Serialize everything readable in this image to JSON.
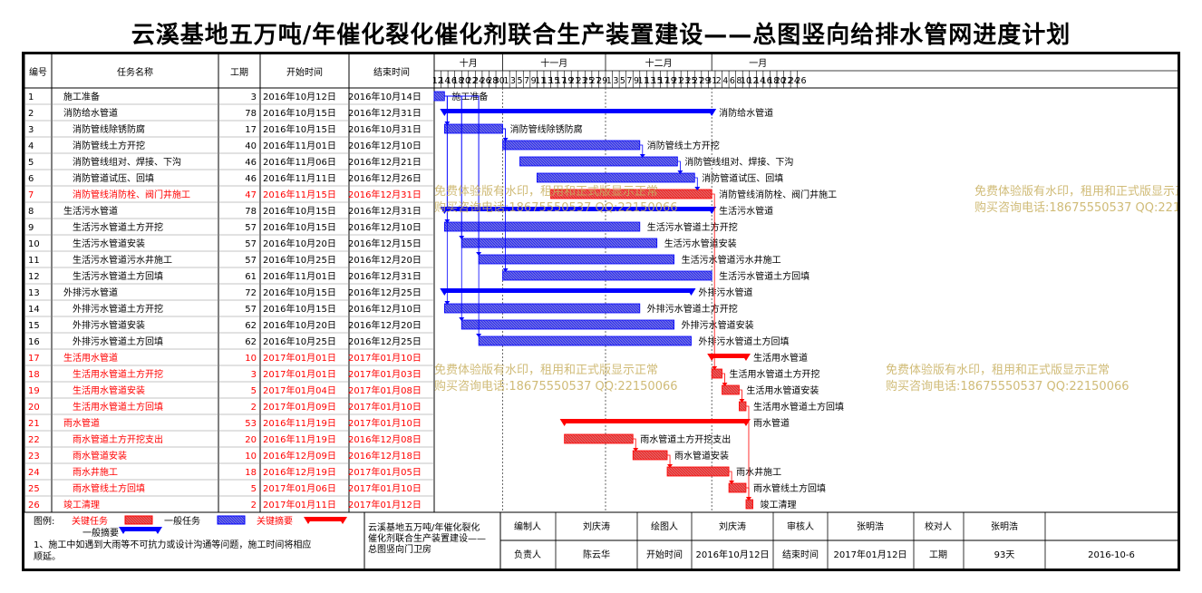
{
  "title": "云溪基地五万吨/年催化裂化催化剂联合生产装置建设——总图竖向给排水管网进度计划",
  "columns": {
    "no": "编号",
    "name": "任务名称",
    "duration": "工期",
    "start": "开始时间",
    "end": "结束时间"
  },
  "months": [
    "十月",
    "十一月",
    "十二月",
    "一月"
  ],
  "day_labels": [
    "12",
    "14",
    "16",
    "18",
    "20",
    "22",
    "24",
    "26",
    "28",
    "30",
    "1",
    "3",
    "5",
    "7",
    "9",
    "11",
    "13",
    "15",
    "17",
    "19",
    "21",
    "23",
    "25",
    "27",
    "29",
    "1",
    "3",
    "5",
    "7",
    "9",
    "11",
    "13",
    "15",
    "17",
    "19",
    "21",
    "23",
    "25",
    "27",
    "29",
    "31",
    "2",
    "4",
    "6",
    "8",
    "10",
    "12",
    "14",
    "16",
    "18",
    "20",
    "22",
    "24",
    "26"
  ],
  "colors": {
    "critical": "#ff0000",
    "normal": "#0000ff",
    "critical_fill": "#e06060",
    "normal_fill": "#6f6fe0",
    "watermark": "#c8b060",
    "link": "#0000ff",
    "link_critical": "#ff0000"
  },
  "chart_data": {
    "type": "gantt",
    "x_range": [
      "2016-10-12",
      "2017-01-26"
    ],
    "tasks": [
      {
        "no": "1",
        "name": "施工准备",
        "duration": "3",
        "start": "2016年10月12日",
        "end": "2016年10月14日",
        "s": "2016-10-12",
        "e": "2016-10-14",
        "level": 0,
        "critical": false,
        "summary": false
      },
      {
        "no": "2",
        "name": "消防给水管道",
        "duration": "78",
        "start": "2016年10月15日",
        "end": "2016年12月31日",
        "s": "2016-10-15",
        "e": "2016-12-31",
        "level": 0,
        "critical": false,
        "summary": true
      },
      {
        "no": "3",
        "name": "消防管线除锈防腐",
        "duration": "17",
        "start": "2016年10月15日",
        "end": "2016年10月31日",
        "s": "2016-10-15",
        "e": "2016-10-31",
        "level": 1,
        "critical": false,
        "summary": false
      },
      {
        "no": "4",
        "name": "消防管线土方开挖",
        "duration": "40",
        "start": "2016年11月01日",
        "end": "2016年12月10日",
        "s": "2016-11-01",
        "e": "2016-12-10",
        "level": 1,
        "critical": false,
        "summary": false
      },
      {
        "no": "5",
        "name": "消防管线组对、焊接、下沟",
        "duration": "46",
        "start": "2016年11月06日",
        "end": "2016年12月21日",
        "s": "2016-11-06",
        "e": "2016-12-21",
        "level": 1,
        "critical": false,
        "summary": false
      },
      {
        "no": "6",
        "name": "消防管道试压、回填",
        "duration": "46",
        "start": "2016年11月11日",
        "end": "2016年12月26日",
        "s": "2016-11-11",
        "e": "2016-12-26",
        "level": 1,
        "critical": false,
        "summary": false
      },
      {
        "no": "7",
        "name": "消防管线消防栓、阀门井施工",
        "duration": "47",
        "start": "2016年11月15日",
        "end": "2016年12月31日",
        "s": "2016-11-15",
        "e": "2016-12-31",
        "level": 1,
        "critical": true,
        "summary": false
      },
      {
        "no": "8",
        "name": "生活污水管道",
        "duration": "78",
        "start": "2016年10月15日",
        "end": "2016年12月31日",
        "s": "2016-10-15",
        "e": "2016-12-31",
        "level": 0,
        "critical": false,
        "summary": true
      },
      {
        "no": "9",
        "name": "生活污水管道土方开挖",
        "duration": "57",
        "start": "2016年10月15日",
        "end": "2016年12月10日",
        "s": "2016-10-15",
        "e": "2016-12-10",
        "level": 1,
        "critical": false,
        "summary": false
      },
      {
        "no": "10",
        "name": "生活污水管道安装",
        "duration": "57",
        "start": "2016年10月20日",
        "end": "2016年12月15日",
        "s": "2016-10-20",
        "e": "2016-12-15",
        "level": 1,
        "critical": false,
        "summary": false
      },
      {
        "no": "11",
        "name": "生活污水管道污水井施工",
        "duration": "57",
        "start": "2016年10月25日",
        "end": "2016年12月20日",
        "s": "2016-10-25",
        "e": "2016-12-20",
        "level": 1,
        "critical": false,
        "summary": false
      },
      {
        "no": "12",
        "name": "生活污水管道土方回填",
        "duration": "61",
        "start": "2016年11月01日",
        "end": "2016年12月31日",
        "s": "2016-11-01",
        "e": "2016-12-31",
        "level": 1,
        "critical": false,
        "summary": false
      },
      {
        "no": "13",
        "name": "外排污水管道",
        "duration": "72",
        "start": "2016年10月15日",
        "end": "2016年12月25日",
        "s": "2016-10-15",
        "e": "2016-12-25",
        "level": 0,
        "critical": false,
        "summary": true
      },
      {
        "no": "14",
        "name": "外排污水管道土方开挖",
        "duration": "57",
        "start": "2016年10月15日",
        "end": "2016年12月10日",
        "s": "2016-10-15",
        "e": "2016-12-10",
        "level": 1,
        "critical": false,
        "summary": false
      },
      {
        "no": "15",
        "name": "外排污水管道安装",
        "duration": "62",
        "start": "2016年10月20日",
        "end": "2016年12月20日",
        "s": "2016-10-20",
        "e": "2016-12-20",
        "level": 1,
        "critical": false,
        "summary": false
      },
      {
        "no": "16",
        "name": "外排污水管道土方回填",
        "duration": "62",
        "start": "2016年10月25日",
        "end": "2016年12月25日",
        "s": "2016-10-25",
        "e": "2016-12-25",
        "level": 1,
        "critical": false,
        "summary": false
      },
      {
        "no": "17",
        "name": "生活用水管道",
        "duration": "10",
        "start": "2017年01月01日",
        "end": "2017年01月10日",
        "s": "2017-01-01",
        "e": "2017-01-10",
        "level": 0,
        "critical": true,
        "summary": true
      },
      {
        "no": "18",
        "name": "生活用水管道土方开挖",
        "duration": "3",
        "start": "2017年01月01日",
        "end": "2017年01月03日",
        "s": "2017-01-01",
        "e": "2017-01-03",
        "level": 1,
        "critical": true,
        "summary": false
      },
      {
        "no": "19",
        "name": "生活用水管道安装",
        "duration": "5",
        "start": "2017年01月04日",
        "end": "2017年01月08日",
        "s": "2017-01-04",
        "e": "2017-01-08",
        "level": 1,
        "critical": true,
        "summary": false
      },
      {
        "no": "20",
        "name": "生活用水管道土方回填",
        "duration": "2",
        "start": "2017年01月09日",
        "end": "2017年01月10日",
        "s": "2017-01-09",
        "e": "2017-01-10",
        "level": 1,
        "critical": true,
        "summary": false
      },
      {
        "no": "21",
        "name": "雨水管道",
        "duration": "53",
        "start": "2016年11月19日",
        "end": "2017年01月10日",
        "s": "2016-11-19",
        "e": "2017-01-10",
        "level": 0,
        "critical": true,
        "summary": true
      },
      {
        "no": "22",
        "name": "雨水管道土方开挖支出",
        "duration": "20",
        "start": "2016年11月19日",
        "end": "2016年12月08日",
        "s": "2016-11-19",
        "e": "2016-12-08",
        "level": 1,
        "critical": true,
        "summary": false
      },
      {
        "no": "23",
        "name": "雨水管道安装",
        "duration": "10",
        "start": "2016年12月09日",
        "end": "2016年12月18日",
        "s": "2016-12-09",
        "e": "2016-12-18",
        "level": 1,
        "critical": true,
        "summary": false
      },
      {
        "no": "24",
        "name": "雨水井施工",
        "duration": "18",
        "start": "2016年12月19日",
        "end": "2017年01月05日",
        "s": "2016-12-19",
        "e": "2017-01-05",
        "level": 1,
        "critical": true,
        "summary": false
      },
      {
        "no": "25",
        "name": "雨水管线土方回填",
        "duration": "5",
        "start": "2017年01月06日",
        "end": "2017年01月10日",
        "s": "2017-01-06",
        "e": "2017-01-10",
        "level": 1,
        "critical": true,
        "summary": false
      },
      {
        "no": "26",
        "name": "竣工清理",
        "duration": "2",
        "start": "2017年01月11日",
        "end": "2017年01月12日",
        "s": "2017-01-11",
        "e": "2017-01-12",
        "level": 0,
        "critical": true,
        "summary": false
      }
    ],
    "links": [
      [
        1,
        3
      ],
      [
        1,
        9
      ],
      [
        1,
        10
      ],
      [
        1,
        11
      ],
      [
        1,
        14
      ],
      [
        1,
        15
      ],
      [
        1,
        16
      ],
      [
        3,
        4
      ],
      [
        3,
        12
      ],
      [
        4,
        5
      ],
      [
        5,
        6
      ],
      [
        6,
        7
      ],
      [
        7,
        18
      ],
      [
        18,
        19
      ],
      [
        19,
        20
      ],
      [
        22,
        23
      ],
      [
        23,
        24
      ],
      [
        24,
        25
      ],
      [
        25,
        26
      ],
      [
        20,
        26
      ]
    ]
  },
  "watermarks": [
    "免费体验版有水印，租用和正式版显示正常",
    "购买咨询电话:18675550537 QQ:22150066"
  ],
  "legend": {
    "label": "图例:",
    "critical_task": "关键任务",
    "normal_task": "一般任务",
    "critical_summary": "关键摘要",
    "normal_summary": "一般摘要",
    "note": "1、施工中如遇到大雨等不可抗力或设计沟通等问题，施工时间将相应顺延。"
  },
  "footer": {
    "project": "云溪基地五万吨/年催化裂化催化剂联合生产装置建设——总图竖向门卫房",
    "row1": [
      "编制人",
      "刘庆涛",
      "绘图人",
      "刘庆涛",
      "审核人",
      "张明浩",
      "校对人",
      "张明浩"
    ],
    "row2": [
      "负责人",
      "陈云华",
      "开始时间",
      "2016年10月12日",
      "结束时间",
      "2017年01月12日",
      "工期",
      "93天",
      "2016-10-6"
    ]
  }
}
